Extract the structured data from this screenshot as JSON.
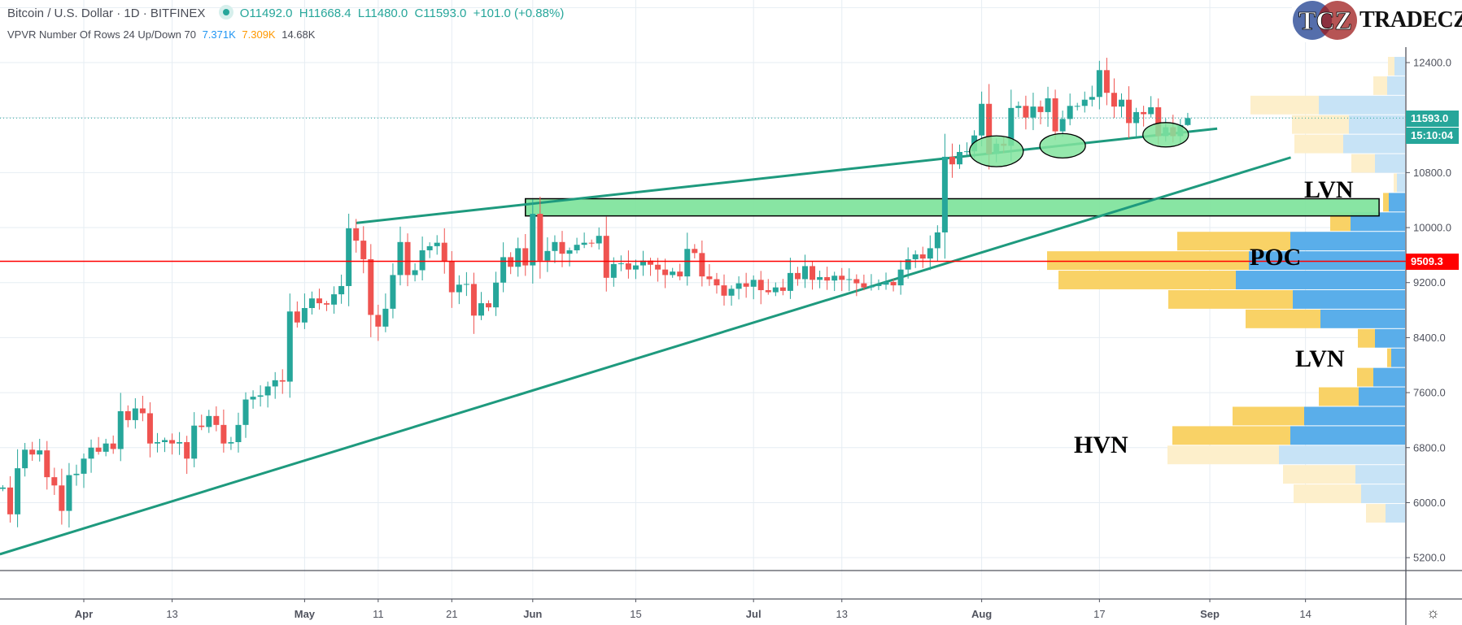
{
  "header": {
    "symbol": "Bitcoin / U.S. Dollar · 1D · BITFINEX",
    "open": "O11492.0",
    "high": "H11668.4",
    "low": "L11480.0",
    "close": "C11593.0",
    "change": "+101.0 (+0.88%)",
    "indicator": "VPVR Number Of Rows 24 Up/Down 70",
    "up_volume": "7.371K",
    "down_volume": "7.309K",
    "total_volume": "14.68K"
  },
  "logo": {
    "mark": "TCZ",
    "name": "TRADECZ"
  },
  "annotations": {
    "lvn_top": "LVN",
    "poc": "POC",
    "lvn_bottom": "LVN",
    "hvn": "HVN"
  },
  "axis_labels": {
    "last_price": "11593.0",
    "countdown": "15:10:04",
    "poc_price": "9509.3"
  },
  "colors": {
    "up": "#26a69a",
    "down": "#ef5350",
    "vp_up": "#5aaeea",
    "vp_down": "#f9d266",
    "vp_up_light": "#c7e3f6",
    "vp_down_light": "#fdefcb",
    "poc_line": "#ff0000",
    "zone": "#82e49e",
    "trend": "#1e9a7e"
  },
  "chart_data": {
    "type": "candlestick",
    "title": "Bitcoin / U.S. Dollar · 1D · BITFINEX",
    "start_date": "2020-03-21",
    "first_open": 6200,
    "closes": [
      6220,
      5830,
      6500,
      6770,
      6700,
      6760,
      6370,
      6250,
      5880,
      6400,
      6420,
      6640,
      6800,
      6740,
      6860,
      6780,
      7330,
      7200,
      7370,
      7300,
      6860,
      6880,
      6910,
      6860,
      6880,
      6640,
      7120,
      7100,
      7260,
      7130,
      6860,
      6880,
      7130,
      7500,
      7540,
      7560,
      7690,
      7780,
      7760,
      8780,
      8620,
      8830,
      8970,
      8900,
      8880,
      9030,
      9150,
      9990,
      9810,
      9540,
      8730,
      8560,
      8820,
      9310,
      9790,
      9310,
      9380,
      9670,
      9730,
      9780,
      9510,
      9060,
      9170,
      9180,
      8720,
      8900,
      8840,
      9200,
      9570,
      9430,
      9700,
      9450,
      10200,
      9520,
      9660,
      9790,
      9620,
      9670,
      9750,
      9780,
      9770,
      9880,
      9270,
      9470,
      9480,
      9390,
      9450,
      9520,
      9460,
      9390,
      9310,
      9360,
      9290,
      9690,
      9630,
      9290,
      9250,
      9160,
      9010,
      9110,
      9190,
      9140,
      9240,
      9090,
      9060,
      9130,
      9080,
      9340,
      9250,
      9440,
      9240,
      9280,
      9230,
      9300,
      9240,
      9250,
      9190,
      9130,
      9150,
      9170,
      9210,
      9160,
      9390,
      9540,
      9610,
      9550,
      9700,
      9930,
      11030,
      10920,
      11100,
      11110,
      11340,
      11800,
      11070,
      11220,
      11190,
      11740,
      11770,
      11600,
      11760,
      11680,
      11880,
      11400,
      11580,
      11770,
      11770,
      11860,
      11900,
      12290,
      11960,
      11760,
      11860,
      11520,
      11680,
      11650,
      11750,
      11330,
      11460,
      11330,
      11492,
      11593
    ],
    "last_candle": {
      "o": 11492.0,
      "h": 11668.4,
      "l": 11480.0,
      "c": 11593.0
    },
    "y_ticks": [
      "12400.0",
      "11600.0",
      "10800.0",
      "10000.0",
      "9200.0",
      "8400.0",
      "7600.0",
      "6800.0",
      "6000.0",
      "5200.0"
    ],
    "y_tick_values": [
      12400,
      11600,
      10800,
      10000,
      9200,
      8400,
      7600,
      6800,
      6000,
      5200
    ],
    "hidden_tick_labels": [
      "11600.0"
    ],
    "extra_grid_values": [
      13200
    ],
    "x_ticks": [
      {
        "label": "Apr",
        "day": 11,
        "bold": true
      },
      {
        "label": "13",
        "day": 23
      },
      {
        "label": "May",
        "day": 41,
        "bold": true
      },
      {
        "label": "11",
        "day": 51
      },
      {
        "label": "21",
        "day": 61
      },
      {
        "label": "Jun",
        "day": 72,
        "bold": true
      },
      {
        "label": "15",
        "day": 86
      },
      {
        "label": "Jul",
        "day": 102,
        "bold": true
      },
      {
        "label": "13",
        "day": 114
      },
      {
        "label": "Aug",
        "day": 133,
        "bold": true
      },
      {
        "label": "17",
        "day": 149
      },
      {
        "label": "Sep",
        "day": 164,
        "bold": true
      },
      {
        "label": "14",
        "day": 177
      }
    ],
    "last_price": 11593.0,
    "poc_price": 9509.3,
    "volume_profile": {
      "row_top_price": 12483,
      "row_size": 282.7,
      "rows": [
        {
          "up": 13,
          "down": 8,
          "va": false
        },
        {
          "up": 22,
          "down": 17,
          "va": false
        },
        {
          "up": 106,
          "down": 84,
          "va": false
        },
        {
          "up": 69,
          "down": 70,
          "va": false
        },
        {
          "up": 76,
          "down": 60,
          "va": false
        },
        {
          "up": 37,
          "down": 29,
          "va": false
        },
        {
          "up": 10,
          "down": 4,
          "va": false
        },
        {
          "up": 20,
          "down": 7,
          "va": true
        },
        {
          "up": 67,
          "down": 25,
          "va": true
        },
        {
          "up": 141,
          "down": 139,
          "va": true
        },
        {
          "up": 192,
          "down": 248,
          "va": true
        },
        {
          "up": 208,
          "down": 218,
          "va": true
        },
        {
          "up": 138,
          "down": 153,
          "va": true
        },
        {
          "up": 104,
          "down": 92,
          "va": true
        },
        {
          "up": 37,
          "down": 21,
          "va": true
        },
        {
          "up": 17,
          "down": 5,
          "va": true
        },
        {
          "up": 39,
          "down": 20,
          "va": true
        },
        {
          "up": 57,
          "down": 49,
          "va": true
        },
        {
          "up": 124,
          "down": 88,
          "va": true
        },
        {
          "up": 141,
          "down": 145,
          "va": true
        },
        {
          "up": 155,
          "down": 137,
          "va": false
        },
        {
          "up": 61,
          "down": 89,
          "va": false
        },
        {
          "up": 54,
          "down": 83,
          "va": false
        },
        {
          "up": 24,
          "down": 24,
          "va": false
        }
      ]
    },
    "drawings": {
      "zone": {
        "from_day": 71,
        "to_day": 187,
        "price_top": 10420,
        "price_bottom": 10170
      },
      "upper_trendline": {
        "from_day": 48,
        "from_price": 10067,
        "to_day": 165,
        "to_price": 11440
      },
      "lower_trendline": {
        "from_day": -0.4,
        "from_price": 5250,
        "to_day": 175,
        "to_price": 11020
      },
      "ellipses": [
        {
          "day": 135,
          "price": 11110
        },
        {
          "day": 144,
          "price": 11190
        },
        {
          "day": 158,
          "price": 11350
        }
      ]
    }
  }
}
